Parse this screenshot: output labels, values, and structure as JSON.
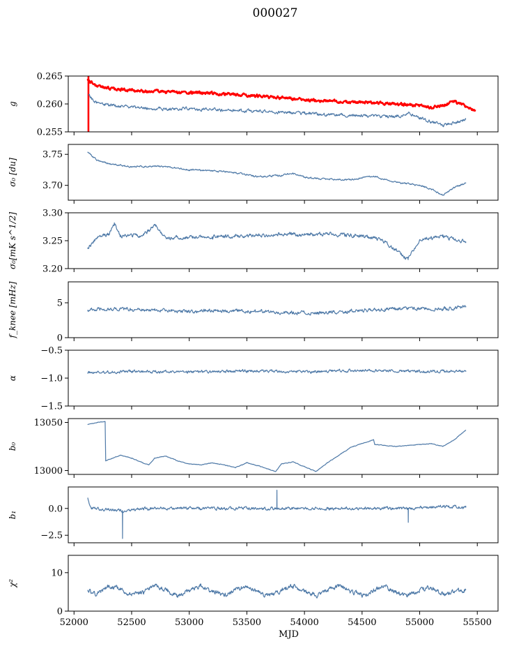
{
  "figure": {
    "title": "000027"
  },
  "chart_data": [
    {
      "type": "line",
      "ylabel": "g",
      "ylim": [
        0.255,
        0.265
      ],
      "yticks": [
        0.255,
        0.26,
        0.265
      ],
      "ytick_labels": [
        "0.255",
        "0.260",
        "0.265"
      ],
      "xlim": [
        51950,
        55680
      ],
      "series": [
        {
          "color": "#ff0000",
          "noise": 0.00045,
          "x": [
            52120,
            52140,
            52200,
            52300,
            52400,
            52600,
            52800,
            53000,
            53200,
            53400,
            53600,
            53800,
            54000,
            54200,
            54400,
            54600,
            54800,
            55000,
            55100,
            55200,
            55300,
            55400,
            55480
          ],
          "y": [
            0.2645,
            0.264,
            0.2632,
            0.2628,
            0.2626,
            0.2623,
            0.2622,
            0.262,
            0.2619,
            0.2617,
            0.2614,
            0.2611,
            0.2607,
            0.2605,
            0.2603,
            0.2602,
            0.26,
            0.2597,
            0.2593,
            0.2598,
            0.2604,
            0.2596,
            0.2588
          ]
        },
        {
          "color": "#4e79a7",
          "noise": 0.0005,
          "x": [
            52130,
            52150,
            52200,
            52300,
            52400,
            52600,
            52800,
            53000,
            53200,
            53400,
            53600,
            53800,
            54000,
            54200,
            54400,
            54600,
            54800,
            54900,
            55000,
            55100,
            55200,
            55300,
            55400
          ],
          "y": [
            0.2618,
            0.261,
            0.2602,
            0.2598,
            0.2596,
            0.2593,
            0.2591,
            0.2592,
            0.259,
            0.2588,
            0.2587,
            0.2585,
            0.2583,
            0.2581,
            0.258,
            0.2578,
            0.2577,
            0.2583,
            0.2575,
            0.2568,
            0.2562,
            0.2566,
            0.2572
          ]
        }
      ]
    },
    {
      "type": "line",
      "ylabel": "σ₀ [du]",
      "ylim": [
        3.676,
        3.766
      ],
      "yticks": [
        3.7,
        3.75
      ],
      "ytick_labels": [
        "3.70",
        "3.75"
      ],
      "xlim": [
        51950,
        55680
      ],
      "series": [
        {
          "color": "#4e79a7",
          "noise": 0.0025,
          "x": [
            52120,
            52200,
            52300,
            52500,
            52700,
            52800,
            53000,
            53200,
            53400,
            53600,
            53800,
            53900,
            54000,
            54200,
            54400,
            54600,
            54800,
            55000,
            55100,
            55200,
            55300,
            55400
          ],
          "y": [
            3.754,
            3.74,
            3.735,
            3.73,
            3.731,
            3.73,
            3.725,
            3.724,
            3.72,
            3.714,
            3.716,
            3.72,
            3.713,
            3.71,
            3.709,
            3.715,
            3.705,
            3.7,
            3.694,
            3.684,
            3.696,
            3.704
          ]
        }
      ]
    },
    {
      "type": "line",
      "ylabel": "σ₀[mK s^1/2]",
      "ylim": [
        3.2,
        3.3
      ],
      "yticks": [
        3.2,
        3.25,
        3.3
      ],
      "ytick_labels": [
        "3.20",
        "3.25",
        "3.30"
      ],
      "xlim": [
        51950,
        55680
      ],
      "series": [
        {
          "color": "#4e79a7",
          "noise": 0.006,
          "x": [
            52120,
            52200,
            52300,
            52350,
            52400,
            52600,
            52700,
            52800,
            53000,
            53200,
            53400,
            53600,
            53800,
            54000,
            54200,
            54400,
            54600,
            54700,
            54800,
            54900,
            55000,
            55200,
            55400
          ],
          "y": [
            3.238,
            3.255,
            3.262,
            3.282,
            3.258,
            3.26,
            3.278,
            3.255,
            3.256,
            3.257,
            3.258,
            3.26,
            3.262,
            3.26,
            3.262,
            3.26,
            3.255,
            3.248,
            3.232,
            3.216,
            3.252,
            3.257,
            3.248
          ]
        }
      ]
    },
    {
      "type": "line",
      "ylabel": "f_knee [mHz]",
      "ylim": [
        0,
        8
      ],
      "yticks": [
        0,
        5
      ],
      "ytick_labels": [
        "0",
        "5"
      ],
      "xlim": [
        51950,
        55680
      ],
      "series": [
        {
          "color": "#4e79a7",
          "noise": 0.45,
          "x": [
            52120,
            52400,
            52700,
            53000,
            53300,
            53600,
            53900,
            54100,
            54400,
            54700,
            55000,
            55200,
            55400
          ],
          "y": [
            4.0,
            4.1,
            3.9,
            3.8,
            3.9,
            3.7,
            3.6,
            3.5,
            3.8,
            4.1,
            4.2,
            4.1,
            4.4
          ]
        }
      ]
    },
    {
      "type": "line",
      "ylabel": "α",
      "ylim": [
        -1.5,
        -0.5
      ],
      "yticks": [
        -1.5,
        -1.0,
        -0.5
      ],
      "ytick_labels": [
        "−1.5",
        "−1.0",
        "−0.5"
      ],
      "xlim": [
        51950,
        55680
      ],
      "series": [
        {
          "color": "#4e79a7",
          "noise": 0.045,
          "x": [
            52120,
            52500,
            53000,
            53500,
            54000,
            54500,
            55000,
            55400
          ],
          "y": [
            -0.9,
            -0.88,
            -0.89,
            -0.87,
            -0.89,
            -0.86,
            -0.88,
            -0.87
          ]
        }
      ]
    },
    {
      "type": "line",
      "ylabel": "b₀",
      "ylim": [
        12996,
        13054
      ],
      "yticks": [
        13000,
        13050
      ],
      "ytick_labels": [
        "13000",
        "13050"
      ],
      "xlim": [
        51950,
        55680
      ],
      "series": [
        {
          "color": "#4e79a7",
          "noise": 0.6,
          "x": [
            52120,
            52200,
            52270,
            52275,
            52400,
            52500,
            52600,
            52650,
            52700,
            52800,
            52900,
            53000,
            53100,
            53200,
            53300,
            53400,
            53500,
            53600,
            53700,
            53750,
            53800,
            53900,
            54000,
            54100,
            54200,
            54400,
            54600,
            54610,
            54800,
            55000,
            55100,
            55200,
            55300,
            55400
          ],
          "y": [
            13048,
            13050,
            13051,
            13010,
            13016,
            13013,
            13008,
            13006,
            13013,
            13015,
            13010,
            13007,
            13006,
            13008,
            13006,
            13003,
            13008,
            13005,
            13001,
            12999,
            13007,
            13009,
            13004,
            12999,
            13008,
            13024,
            13032,
            13027,
            13025,
            13027,
            13028,
            13025,
            13032,
            13042
          ]
        }
      ]
    },
    {
      "type": "line",
      "ylabel": "b₁",
      "ylim": [
        -3.2,
        2.0
      ],
      "yticks": [
        -2.5,
        0.0
      ],
      "ytick_labels": [
        "−2.5",
        "0.0"
      ],
      "xlim": [
        51950,
        55680
      ],
      "series": [
        {
          "color": "#4e79a7",
          "noise": 0.25,
          "x": [
            52120,
            52130,
            52160,
            52300,
            52420,
            52421,
            52422,
            52600,
            52900,
            53200,
            53500,
            53760,
            53761,
            53762,
            54000,
            54500,
            54900,
            54901,
            54902,
            55200,
            55400
          ],
          "y": [
            1.0,
            0.5,
            0.0,
            -0.1,
            -0.2,
            -2.8,
            -0.3,
            0.0,
            0.0,
            0.0,
            0.0,
            0.0,
            1.7,
            0.0,
            0.0,
            0.0,
            0.0,
            -1.3,
            0.0,
            0.2,
            0.1
          ]
        }
      ]
    },
    {
      "type": "line",
      "ylabel": "χ²",
      "ylim": [
        0,
        14.5
      ],
      "yticks": [
        0,
        10
      ],
      "ytick_labels": [
        "0",
        "10"
      ],
      "xlim": [
        51950,
        55680
      ],
      "xticks": [
        52000,
        52500,
        53000,
        53500,
        54000,
        54500,
        55000,
        55500
      ],
      "xtick_labels": [
        "52000",
        "52500",
        "53000",
        "53500",
        "54000",
        "54500",
        "55000",
        "55500"
      ],
      "xlabel": "MJD",
      "series": [
        {
          "color": "#4e79a7",
          "noise": 1.1,
          "x": [
            52120,
            52200,
            52300,
            52400,
            52500,
            52600,
            52700,
            52800,
            52900,
            53000,
            53100,
            53200,
            53300,
            53400,
            53500,
            53600,
            53700,
            53800,
            53900,
            54000,
            54100,
            54200,
            54300,
            54400,
            54500,
            54600,
            54700,
            54800,
            54900,
            55000,
            55100,
            55200,
            55300,
            55400
          ],
          "y": [
            5.5,
            4.5,
            6.5,
            6.0,
            4.0,
            5.0,
            6.5,
            5.5,
            4.0,
            5.5,
            6.5,
            5.0,
            4.0,
            5.5,
            6.5,
            5.0,
            4.0,
            5.5,
            6.5,
            5.0,
            4.0,
            5.5,
            6.5,
            5.0,
            4.0,
            5.5,
            6.5,
            5.0,
            4.0,
            5.5,
            6.0,
            4.5,
            5.0,
            5.5
          ]
        }
      ]
    }
  ]
}
